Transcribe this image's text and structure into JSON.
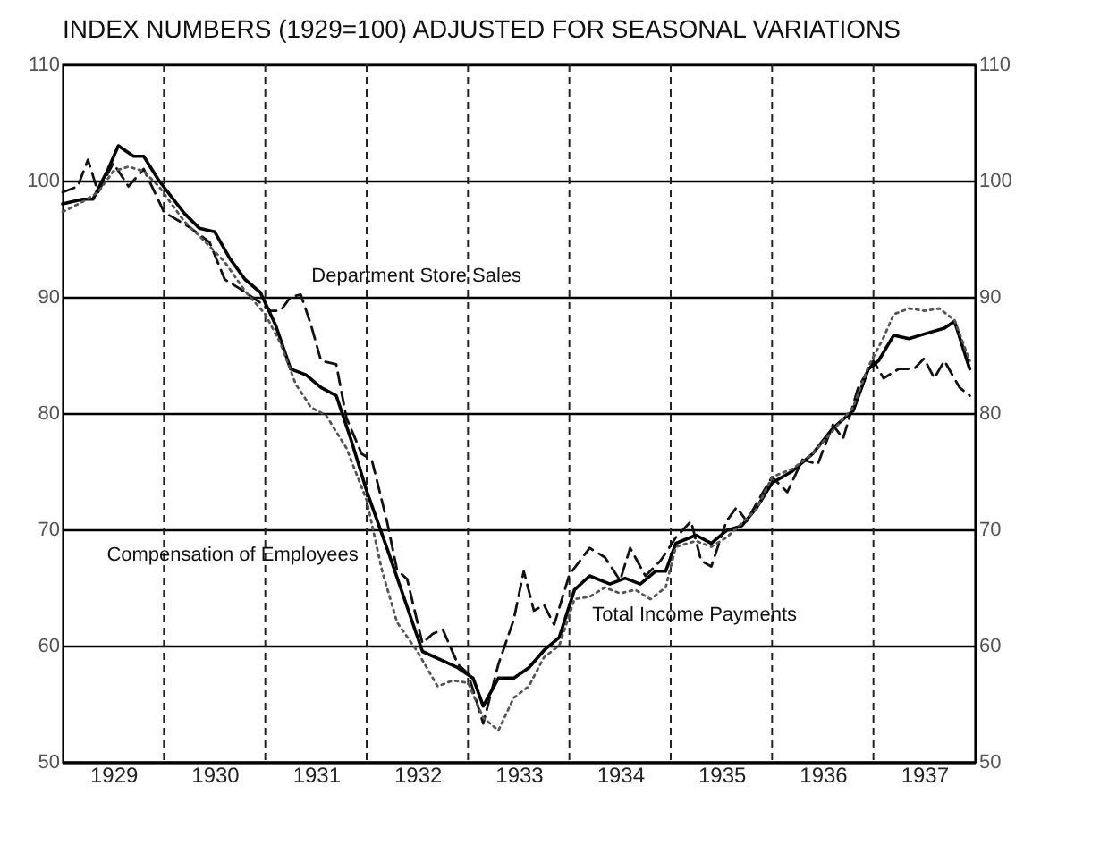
{
  "chart_data": {
    "type": "line",
    "title": "INDEX NUMBERS (1929=100) ADJUSTED FOR SEASONAL VARIATIONS",
    "xlim": [
      1929,
      1938
    ],
    "xticks": [
      {
        "value": 1929.5,
        "label": "1929"
      },
      {
        "value": 1930,
        "label": null
      },
      {
        "value": 1930.5,
        "label": "1930"
      },
      {
        "value": 1931,
        "label": null
      },
      {
        "value": 1931.5,
        "label": "1931"
      },
      {
        "value": 1932,
        "label": null
      },
      {
        "value": 1932.5,
        "label": "1932"
      },
      {
        "value": 1933,
        "label": null
      },
      {
        "value": 1933.5,
        "label": "1933"
      },
      {
        "value": 1934,
        "label": null
      },
      {
        "value": 1934.5,
        "label": "1934"
      },
      {
        "value": 1935,
        "label": null
      },
      {
        "value": 1935.5,
        "label": "1935"
      },
      {
        "value": 1936,
        "label": null
      },
      {
        "value": 1936.5,
        "label": "1936"
      },
      {
        "value": 1937,
        "label": null
      },
      {
        "value": 1937.5,
        "label": "1937"
      }
    ],
    "ylim": [
      50,
      110
    ],
    "yticks": [
      50,
      60,
      70,
      80,
      90,
      100,
      110
    ],
    "y2lim": [
      50,
      110
    ],
    "y2ticks": [
      50,
      60,
      70,
      80,
      90,
      100,
      110
    ],
    "grid": true,
    "series": [
      {
        "color": "#111111",
        "line_style": "dashed",
        "x": [
          1929.0,
          1929.15,
          1929.25,
          1929.35,
          1929.5,
          1929.65,
          1929.8,
          1930.0,
          1930.25,
          1930.45,
          1930.6,
          1930.75,
          1930.95,
          1931.05,
          1931.15,
          1931.25,
          1931.35,
          1931.45,
          1931.55,
          1931.7,
          1931.8,
          1931.95,
          1932.05,
          1932.2,
          1932.3,
          1932.4,
          1932.55,
          1932.65,
          1932.75,
          1932.9,
          1933.0,
          1933.15,
          1933.3,
          1933.45,
          1933.55,
          1933.65,
          1933.75,
          1933.85,
          1934.0,
          1934.2,
          1934.35,
          1934.5,
          1934.6,
          1934.75,
          1934.9,
          1935.05,
          1935.2,
          1935.3,
          1935.4,
          1935.55,
          1935.65,
          1935.75,
          1935.85,
          1936.0,
          1936.15,
          1936.3,
          1936.45,
          1936.6,
          1936.7,
          1936.85,
          1937.0,
          1937.1,
          1937.25,
          1937.4,
          1937.5,
          1937.6,
          1937.7,
          1937.85,
          1937.95
        ],
        "values": [
          99,
          99.5,
          101.8,
          99,
          101.5,
          99.5,
          101,
          97.3,
          96,
          94.7,
          91.5,
          90.7,
          89.5,
          88.8,
          88.8,
          90,
          90.2,
          87.6,
          84.5,
          84.2,
          79.6,
          76.5,
          76,
          70.7,
          66.5,
          65.7,
          60.2,
          61,
          61.4,
          58.4,
          57.6,
          53.3,
          58.4,
          62.2,
          66.4,
          63,
          63.5,
          61.8,
          66.1,
          68.4,
          67.6,
          65.6,
          68.4,
          66,
          67.3,
          69.3,
          70.7,
          67.3,
          66.8,
          70.7,
          71.9,
          70.7,
          72.3,
          74.5,
          73.2,
          76,
          75.6,
          79,
          77.8,
          82.2,
          84.5,
          83,
          83.8,
          83.8,
          84.7,
          83,
          84.5,
          82.2,
          81.5
        ]
      },
      {
        "color": "#000000",
        "line_style": "solid",
        "x": [
          1929.0,
          1929.2,
          1929.3,
          1929.45,
          1929.55,
          1929.7,
          1929.8,
          1929.95,
          1930.2,
          1930.35,
          1930.5,
          1930.65,
          1930.8,
          1930.95,
          1931.1,
          1931.25,
          1931.4,
          1931.55,
          1931.7,
          1931.85,
          1932.0,
          1932.2,
          1932.55,
          1932.75,
          1932.9,
          1933.05,
          1933.15,
          1933.3,
          1933.45,
          1933.6,
          1933.75,
          1933.9,
          1934.05,
          1934.2,
          1934.4,
          1934.55,
          1934.7,
          1934.85,
          1934.95,
          1935.05,
          1935.25,
          1935.4,
          1935.55,
          1935.7,
          1935.85,
          1936.0,
          1936.2,
          1936.4,
          1936.6,
          1936.8,
          1936.95,
          1937.05,
          1937.2,
          1937.35,
          1937.5,
          1937.7,
          1937.8,
          1937.95
        ],
        "values": [
          98,
          98.4,
          98.4,
          101,
          103,
          102.1,
          102.1,
          100,
          97.2,
          95.9,
          95.6,
          93.3,
          91.5,
          90.4,
          87.6,
          83.8,
          83.3,
          82.2,
          81.5,
          77.6,
          73.3,
          68.4,
          59.5,
          58.7,
          58.1,
          57.2,
          54.8,
          57.2,
          57.2,
          58.1,
          59.6,
          60.7,
          64.8,
          66,
          65.3,
          65.8,
          65.3,
          66.4,
          66.4,
          68.8,
          69.5,
          68.8,
          69.9,
          70.3,
          71.9,
          74,
          75,
          76.5,
          78.7,
          80.2,
          83.8,
          84.5,
          86.7,
          86.4,
          86.8,
          87.3,
          87.9,
          83.8
        ]
      },
      {
        "color": "#555555",
        "line_style": "dotted",
        "x": [
          1929.0,
          1929.2,
          1929.35,
          1929.5,
          1929.65,
          1929.8,
          1929.95,
          1930.2,
          1930.4,
          1930.6,
          1930.8,
          1931.0,
          1931.15,
          1931.3,
          1931.45,
          1931.6,
          1931.8,
          1932.0,
          1932.15,
          1932.3,
          1932.5,
          1932.7,
          1932.85,
          1933.0,
          1933.15,
          1933.3,
          1933.45,
          1933.6,
          1933.75,
          1933.9,
          1934.05,
          1934.2,
          1934.35,
          1934.5,
          1934.65,
          1934.8,
          1934.95,
          1935.05,
          1935.25,
          1935.4,
          1935.55,
          1935.7,
          1935.85,
          1936.0,
          1936.2,
          1936.4,
          1936.6,
          1936.8,
          1936.95,
          1937.1,
          1937.2,
          1937.35,
          1937.5,
          1937.65,
          1937.8,
          1937.95
        ],
        "values": [
          97.3,
          98.2,
          99,
          100.8,
          101.2,
          100.8,
          99.5,
          96.5,
          94.8,
          93,
          90.5,
          88.5,
          86,
          82.5,
          80.5,
          79.8,
          77,
          72.5,
          66.5,
          62,
          59.5,
          56.5,
          57,
          56.8,
          53.8,
          52.7,
          55.5,
          56.5,
          59,
          60,
          64,
          64.2,
          65,
          64.5,
          64.8,
          64,
          65,
          68.5,
          69,
          68.5,
          69.3,
          70.5,
          71.8,
          74.5,
          75.2,
          76.5,
          78.5,
          80.5,
          84,
          86.5,
          88.5,
          89,
          88.8,
          89,
          88,
          84.5
        ]
      }
    ],
    "annotations": [
      {
        "text": "Department Store Sales",
        "x": 1931.35,
        "y": 90.2
      },
      {
        "text": "Compensation of Employees",
        "x": 1932.2,
        "y": 68.4
      },
      {
        "text": "Total Income Payments",
        "x": 1934.05,
        "y": 64.8
      }
    ]
  }
}
